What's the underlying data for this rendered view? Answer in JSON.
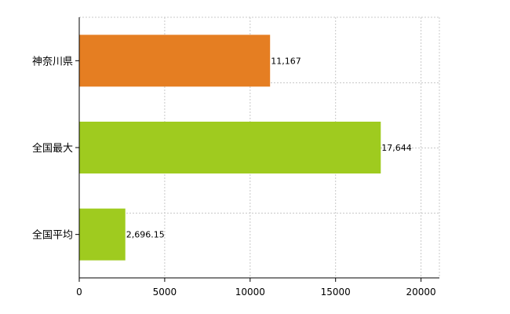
{
  "chart_data": {
    "type": "bar",
    "orientation": "horizontal",
    "categories": [
      "神奈川県",
      "全国最大",
      "全国平均"
    ],
    "values": [
      11167,
      17644,
      2696.15
    ],
    "value_labels": [
      "11,167",
      "17,644",
      "2,696.15"
    ],
    "bar_colors": [
      "#e57e22",
      "#9fcb1f",
      "#9fcb1f"
    ],
    "xlim": [
      0,
      21000
    ],
    "x_ticks": [
      0,
      5000,
      10000,
      15000,
      20000
    ],
    "x_tick_labels": [
      "0",
      "5000",
      "10000",
      "15000",
      "20000"
    ],
    "grid": true,
    "title": "",
    "xlabel": "",
    "ylabel": ""
  }
}
